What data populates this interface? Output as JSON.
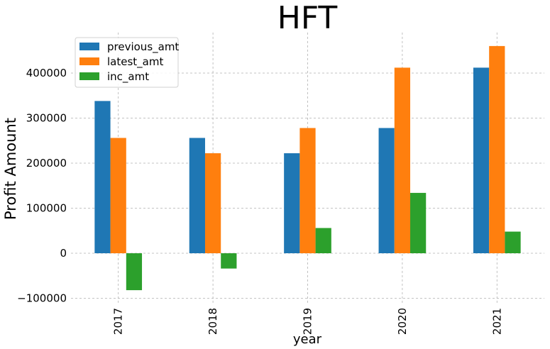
{
  "chart_data": {
    "type": "bar",
    "title": "HFT",
    "xlabel": "year",
    "ylabel": "Profit Amount",
    "categories": [
      "2017",
      "2018",
      "2019",
      "2020",
      "2021"
    ],
    "series": [
      {
        "name": "previous_amt",
        "values": [
          338000,
          256000,
          222000,
          278000,
          412000
        ]
      },
      {
        "name": "latest_amt",
        "values": [
          256000,
          222000,
          278000,
          412000,
          460000
        ]
      },
      {
        "name": "inc_amt",
        "values": [
          -82000,
          -34000,
          56000,
          134000,
          48000
        ]
      }
    ],
    "ylim": [
      -110000,
      490000
    ],
    "yticks": [
      -100000,
      0,
      100000,
      200000,
      300000,
      400000
    ],
    "ytick_labels": [
      "−100000",
      "0",
      "100000",
      "200000",
      "300000",
      "400000"
    ],
    "grid": true,
    "legend_position": "top-left"
  },
  "colors": {
    "previous_amt": "#1f77b4",
    "latest_amt": "#ff7f0e",
    "inc_amt": "#2ca02c"
  }
}
